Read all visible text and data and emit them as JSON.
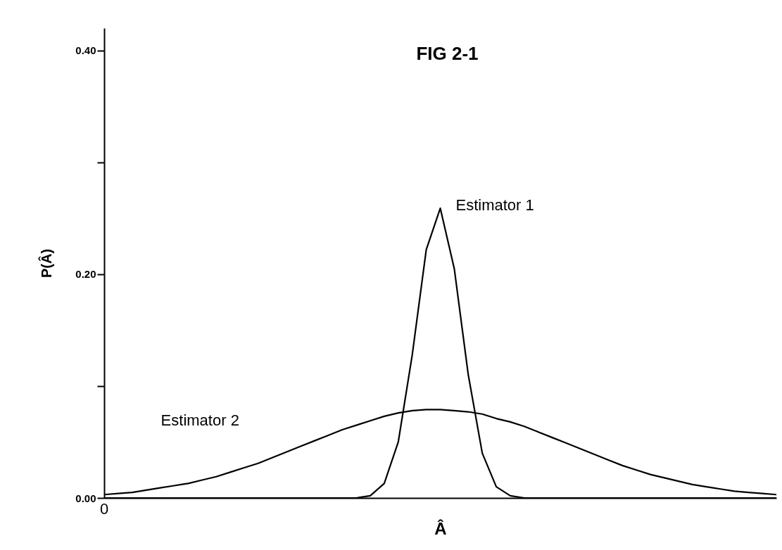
{
  "chart_data": {
    "type": "line",
    "title": "FIG 2-1",
    "xlabel": "Â",
    "ylabel": "P(Â)",
    "annotations": [
      "0"
    ],
    "categories": [
      null,
      null,
      null,
      null,
      null,
      null,
      null,
      null,
      null,
      null,
      null,
      null,
      null,
      null,
      null,
      null,
      null,
      null,
      null,
      null,
      null,
      null,
      null,
      null,
      null,
      null,
      null,
      null,
      null,
      null,
      null,
      null,
      null,
      null,
      null,
      null,
      null,
      null,
      null,
      null,
      null,
      null,
      null,
      null,
      null,
      null,
      null,
      null,
      null
    ],
    "ylim": [
      0,
      0.42
    ],
    "yticks": [
      {
        "value": 0,
        "label": "0.00"
      },
      {
        "value": 0.1,
        "label": null
      },
      {
        "value": 0.2,
        "label": "0.20"
      },
      {
        "value": 0.3,
        "label": null
      },
      {
        "value": 0.4,
        "label": "0.40"
      }
    ],
    "grid": false,
    "legend": false,
    "line_style": "solid",
    "marker": "none",
    "series": [
      {
        "name": "Estimator 1",
        "color": "#000000",
        "values": [
          0,
          0,
          0,
          0,
          0,
          0,
          0,
          0,
          0,
          0,
          0,
          0,
          0,
          0,
          0,
          0,
          0,
          0,
          0,
          0.002,
          0.013,
          0.05,
          0.128,
          0.222,
          0.259,
          0.205,
          0.11,
          0.04,
          0.01,
          0.002,
          0,
          0,
          0,
          0,
          0,
          0,
          0,
          0,
          0,
          0,
          0,
          0,
          0,
          0,
          0,
          0,
          0,
          0,
          0
        ]
      },
      {
        "name": "Estimator 2",
        "color": "#000000",
        "values": [
          0.003,
          0.004,
          0.005,
          0.007,
          0.009,
          0.011,
          0.013,
          0.016,
          0.019,
          0.023,
          0.027,
          0.031,
          0.036,
          0.041,
          0.046,
          0.051,
          0.056,
          0.061,
          0.065,
          0.069,
          0.073,
          0.076,
          0.078,
          0.079,
          0.079,
          0.078,
          0.077,
          0.075,
          0.071,
          0.068,
          0.064,
          0.059,
          0.054,
          0.049,
          0.044,
          0.039,
          0.034,
          0.029,
          0.025,
          0.021,
          0.018,
          0.015,
          0.012,
          0.01,
          0.008,
          0.006,
          0.005,
          0.004,
          0.003
        ]
      }
    ]
  }
}
